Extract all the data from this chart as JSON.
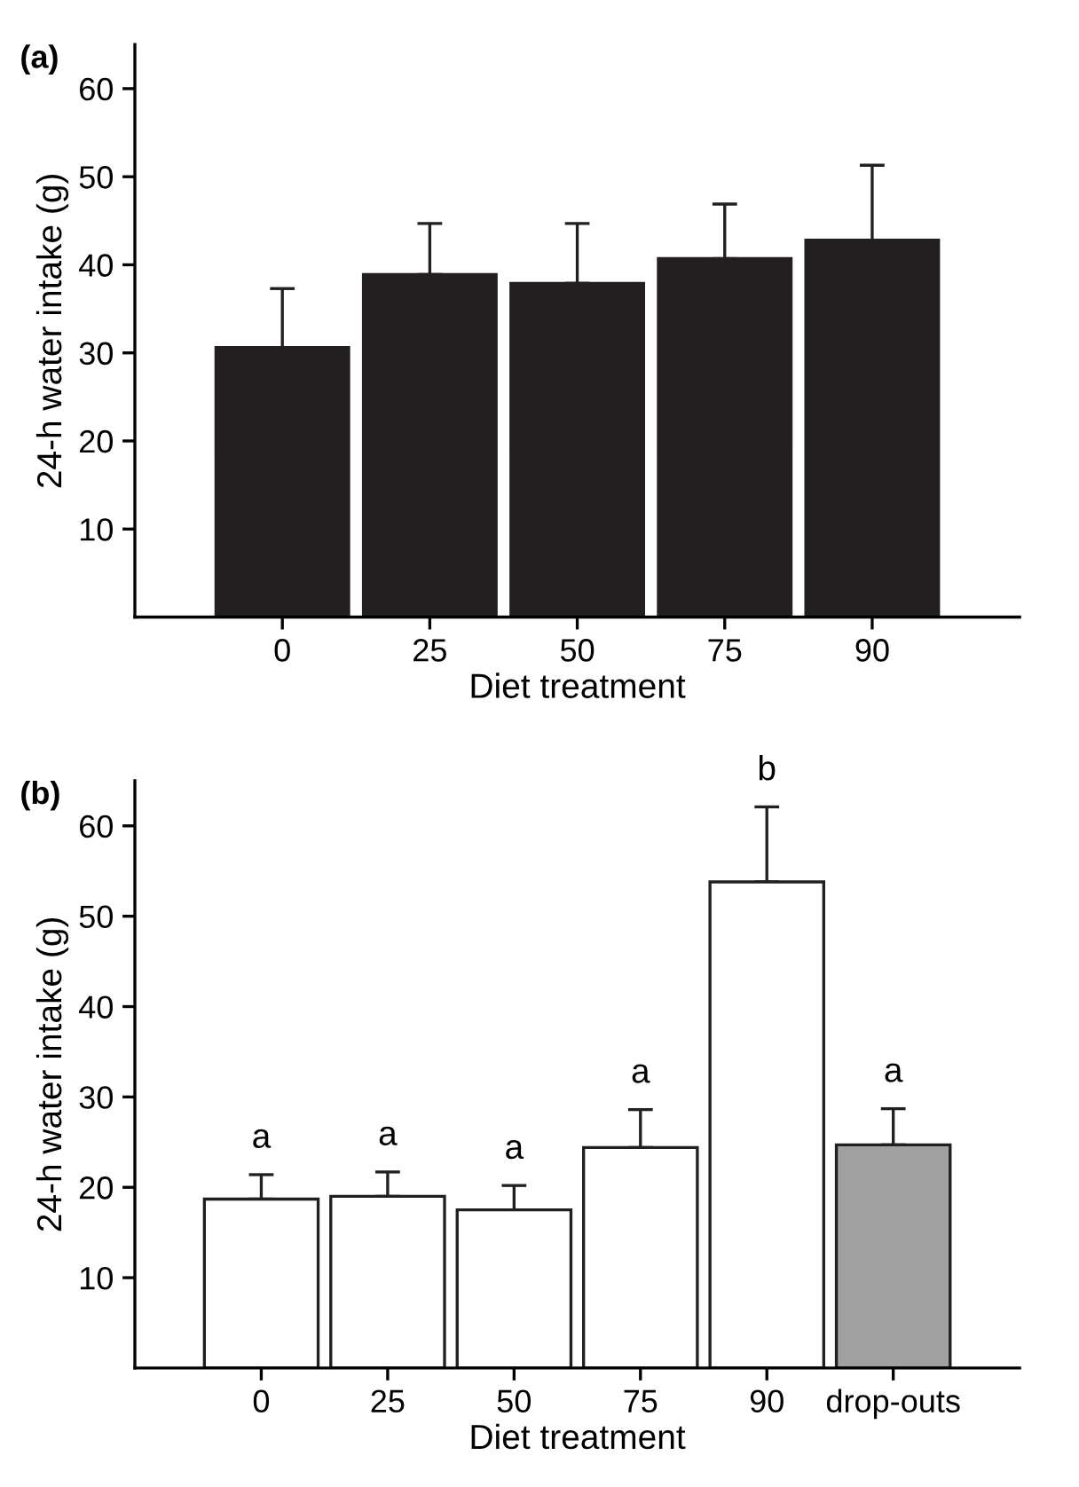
{
  "chart_data": [
    {
      "type": "bar",
      "title": "(a)",
      "xlabel": "Diet treatment",
      "ylabel": "24-h water intake (g)",
      "categories": [
        "0",
        "25",
        "50",
        "75",
        "90"
      ],
      "values": [
        30.6,
        38.9,
        37.9,
        40.7,
        42.8
      ],
      "errors": [
        [
          30.6,
          37.3
        ],
        [
          38.9,
          44.7
        ],
        [
          37.9,
          44.7
        ],
        [
          40.7,
          46.9
        ],
        [
          42.8,
          51.3
        ]
      ],
      "color": "#231f20",
      "ylim": [
        0,
        65
      ],
      "yticks": [
        10,
        20,
        30,
        40,
        50,
        60
      ],
      "grid": false
    },
    {
      "type": "bar",
      "title": "(b)",
      "xlabel": "Diet treatment",
      "ylabel": "24-h water intake (g)",
      "categories": [
        "0",
        "25",
        "50",
        "75",
        "90",
        "drop-outs"
      ],
      "values": [
        18.7,
        19.0,
        17.5,
        24.4,
        53.8,
        24.7
      ],
      "errors": [
        [
          18.7,
          21.4
        ],
        [
          19.0,
          21.7
        ],
        [
          17.5,
          20.2
        ],
        [
          24.4,
          28.6
        ],
        [
          53.8,
          62.1
        ],
        [
          24.7,
          28.7
        ]
      ],
      "colors": [
        "#ffffff",
        "#ffffff",
        "#ffffff",
        "#ffffff",
        "#ffffff",
        "#a0a0a0"
      ],
      "annotations": [
        {
          "text": "a",
          "x": "0",
          "y": 18.7
        },
        {
          "text": "a",
          "x": "25",
          "y": 19.0
        },
        {
          "text": "a",
          "x": "50",
          "y": 17.5
        },
        {
          "text": "a",
          "x": "75",
          "y": 24.4
        },
        {
          "text": "b",
          "x": "90",
          "y": 53.8
        },
        {
          "text": "a",
          "x": "drop-outs",
          "y": 24.7
        }
      ],
      "ylim": [
        0,
        65
      ],
      "yticks": [
        10,
        20,
        30,
        40,
        50,
        60
      ],
      "grid": false
    }
  ]
}
